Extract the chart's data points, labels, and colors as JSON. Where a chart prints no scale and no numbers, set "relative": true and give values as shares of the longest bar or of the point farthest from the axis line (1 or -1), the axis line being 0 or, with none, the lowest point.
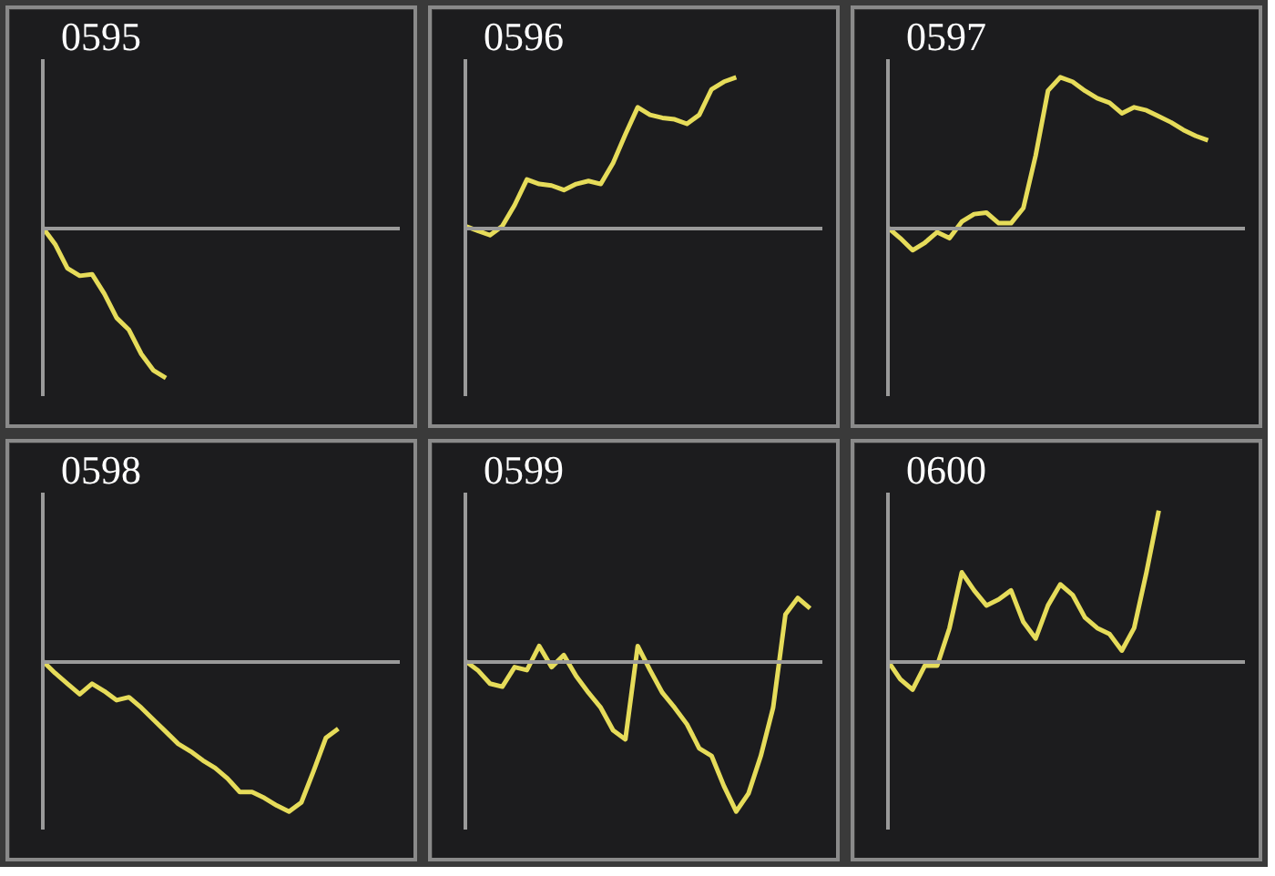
{
  "chart_data": [
    {
      "type": "line",
      "title": "0595",
      "relative": true,
      "categories": [
        null,
        null,
        null,
        null,
        null,
        null,
        null,
        null,
        null,
        null,
        null,
        null,
        null,
        null,
        null,
        null,
        null,
        null,
        null,
        null,
        null,
        null,
        null,
        null,
        null,
        null,
        null,
        null,
        null,
        null
      ],
      "series": [
        {
          "color": "#e6dc5a",
          "values": [
            0,
            -0.11,
            -0.27,
            -0.32,
            -0.31,
            -0.44,
            -0.6,
            -0.68,
            -0.84,
            -0.95,
            -1,
            null,
            null,
            null,
            null,
            null,
            null,
            null,
            null,
            null,
            null,
            null,
            null,
            null,
            null,
            null,
            null,
            null,
            null,
            null
          ]
        }
      ]
    },
    {
      "type": "line",
      "title": "0596",
      "relative": true,
      "categories": [
        null,
        null,
        null,
        null,
        null,
        null,
        null,
        null,
        null,
        null,
        null,
        null,
        null,
        null,
        null,
        null,
        null,
        null,
        null,
        null,
        null,
        null,
        null,
        null,
        null,
        null,
        null,
        null,
        null,
        null
      ],
      "series": [
        {
          "color": "#e6dc5a",
          "values": [
            0.01,
            -0.02,
            -0.05,
            0.01,
            0.15,
            0.32,
            0.29,
            0.28,
            0.25,
            0.29,
            0.31,
            0.29,
            0.43,
            0.62,
            0.8,
            0.75,
            0.73,
            0.72,
            0.69,
            0.75,
            0.92,
            0.97,
            1,
            null,
            null,
            null,
            null,
            null,
            null,
            null
          ]
        }
      ]
    },
    {
      "type": "line",
      "title": "0597",
      "relative": true,
      "categories": [
        null,
        null,
        null,
        null,
        null,
        null,
        null,
        null,
        null,
        null,
        null,
        null,
        null,
        null,
        null,
        null,
        null,
        null,
        null,
        null,
        null,
        null,
        null,
        null,
        null,
        null,
        null,
        null,
        null,
        null
      ],
      "series": [
        {
          "color": "#e6dc5a",
          "values": [
            0,
            -0.07,
            -0.15,
            -0.1,
            -0.03,
            -0.07,
            0.04,
            0.09,
            0.1,
            0.03,
            0.03,
            0.13,
            0.48,
            0.91,
            1,
            0.97,
            0.91,
            0.86,
            0.83,
            0.76,
            0.8,
            0.78,
            0.74,
            0.7,
            0.65,
            0.61,
            0.58,
            null,
            null,
            null
          ]
        }
      ]
    },
    {
      "type": "line",
      "title": "0598",
      "relative": true,
      "categories": [
        null,
        null,
        null,
        null,
        null,
        null,
        null,
        null,
        null,
        null,
        null,
        null,
        null,
        null,
        null,
        null,
        null,
        null,
        null,
        null,
        null,
        null,
        null,
        null,
        null,
        null,
        null,
        null,
        null,
        null
      ],
      "series": [
        {
          "color": "#e6dc5a",
          "values": [
            0,
            -0.08,
            -0.15,
            -0.22,
            -0.15,
            -0.2,
            -0.26,
            -0.24,
            -0.31,
            -0.39,
            -0.47,
            -0.55,
            -0.6,
            -0.66,
            -0.71,
            -0.78,
            -0.87,
            -0.87,
            -0.91,
            -0.96,
            -1,
            -0.94,
            -0.73,
            -0.51,
            -0.45,
            null,
            null,
            null,
            null,
            null
          ]
        }
      ]
    },
    {
      "type": "line",
      "title": "0599",
      "relative": true,
      "categories": [
        null,
        null,
        null,
        null,
        null,
        null,
        null,
        null,
        null,
        null,
        null,
        null,
        null,
        null,
        null,
        null,
        null,
        null,
        null,
        null,
        null,
        null,
        null,
        null,
        null,
        null,
        null,
        null,
        null,
        null
      ],
      "series": [
        {
          "color": "#e6dc5a",
          "values": [
            0,
            -0.06,
            -0.15,
            -0.17,
            -0.04,
            -0.06,
            0.1,
            -0.04,
            0.04,
            -0.1,
            -0.21,
            -0.31,
            -0.46,
            -0.52,
            0.1,
            -0.06,
            -0.21,
            -0.31,
            -0.42,
            -0.58,
            -0.63,
            -0.83,
            -1,
            -0.88,
            -0.63,
            -0.31,
            0.31,
            0.42,
            0.35,
            null
          ]
        }
      ]
    },
    {
      "type": "line",
      "title": "0600",
      "relative": true,
      "categories": [
        null,
        null,
        null,
        null,
        null,
        null,
        null,
        null,
        null,
        null,
        null,
        null,
        null,
        null,
        null,
        null,
        null,
        null,
        null,
        null,
        null,
        null,
        null,
        null,
        null,
        null,
        null,
        null,
        null,
        null
      ],
      "series": [
        {
          "color": "#e6dc5a",
          "values": [
            0,
            -0.12,
            -0.19,
            -0.03,
            -0.03,
            0.22,
            0.59,
            0.47,
            0.37,
            0.41,
            0.47,
            0.26,
            0.15,
            0.37,
            0.51,
            0.44,
            0.29,
            0.22,
            0.18,
            0.07,
            0.22,
            0.59,
            1,
            null,
            null,
            null,
            null,
            null,
            null,
            null
          ]
        }
      ]
    }
  ]
}
